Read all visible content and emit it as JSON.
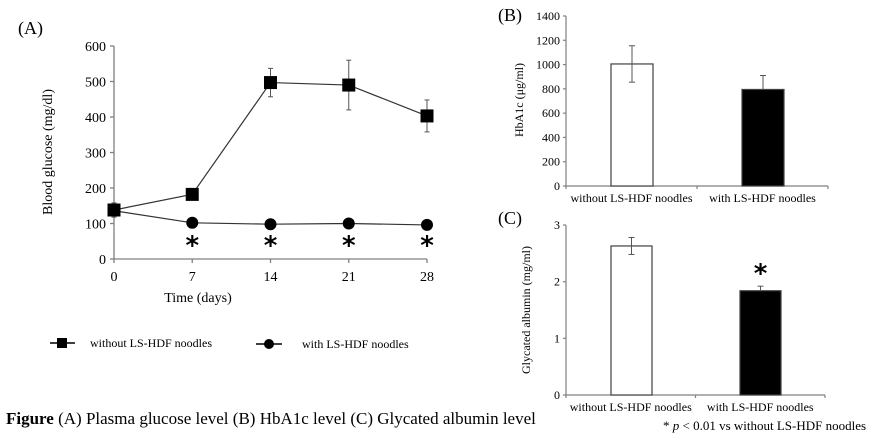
{
  "chart_data": [
    {
      "panel": "(A)",
      "type": "line",
      "xlabel": "Time (days)",
      "ylabel": "Blood glucose (mg/dl)",
      "x": [
        0,
        7,
        14,
        21,
        28
      ],
      "xticks": [
        "0",
        "7",
        "14",
        "21",
        "28"
      ],
      "xlim": [
        0,
        28
      ],
      "ylim": [
        0,
        600
      ],
      "yticks": [
        "0",
        "100",
        "200",
        "300",
        "400",
        "500",
        "600"
      ],
      "grid": false,
      "series": [
        {
          "name": "without LS-HDF noodles",
          "marker": "square",
          "values": [
            138,
            182,
            497,
            490,
            403
          ],
          "error": [
            20,
            5,
            40,
            70,
            45
          ]
        },
        {
          "name": "with LS-HDF noodles",
          "marker": "circle",
          "values": [
            136,
            102,
            98,
            100,
            96
          ],
          "error": [
            0,
            0,
            0,
            0,
            0
          ]
        }
      ],
      "significance": [
        {
          "x": 7,
          "mark": "*"
        },
        {
          "x": 14,
          "mark": "*"
        },
        {
          "x": 21,
          "mark": "*"
        },
        {
          "x": 28,
          "mark": "*"
        }
      ],
      "legend_position": "bottom"
    },
    {
      "panel": "(B)",
      "type": "bar",
      "ylabel": "HbA1c (μg/ml)",
      "categories": [
        "without LS-HDF noodles",
        "with LS-HDF noodles"
      ],
      "values": [
        1005,
        795
      ],
      "error": [
        150,
        115
      ],
      "fills": [
        "#ffffff",
        "#000000"
      ],
      "ylim": [
        0,
        1400
      ],
      "yticks": [
        "0",
        "200",
        "400",
        "600",
        "800",
        "1000",
        "1200",
        "1400"
      ]
    },
    {
      "panel": "(C)",
      "type": "bar",
      "ylabel": "Glycated albumin (mg/ml)",
      "categories": [
        "without LS-HDF noodles",
        "with LS-HDF noodles"
      ],
      "values": [
        2.63,
        1.84
      ],
      "error": [
        0.15,
        0.08
      ],
      "fills": [
        "#ffffff",
        "#000000"
      ],
      "ylim": [
        0,
        3
      ],
      "yticks": [
        "0",
        "1",
        "2",
        "3"
      ],
      "significance": [
        {
          "category": 1,
          "mark": "*"
        }
      ]
    }
  ],
  "caption": {
    "label": "Figure",
    "text": " (A) Plasma glucose level  (B) HbA1c level  (C) Glycated albumin level"
  },
  "footnote": {
    "star": "* ",
    "p": "p",
    "text": " < 0.01 vs without LS-HDF noodles"
  }
}
